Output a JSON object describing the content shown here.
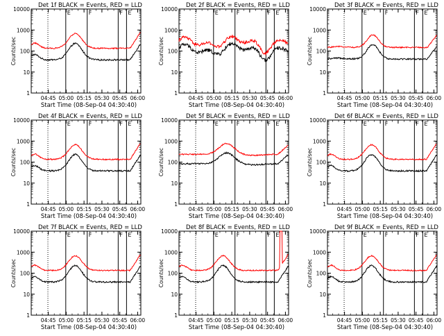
{
  "chart_data": [
    {
      "type": "line",
      "title": "Det 1f BLACK = Events, RED = LLD",
      "xlabel": "Start Time (08-Sep-04 04:30:40)",
      "ylabel": "Counts/sec",
      "yscale": "log",
      "ylim": [
        1,
        10000
      ],
      "yticks": [
        "1",
        "10",
        "100",
        "1000",
        "10000"
      ],
      "xticks": [
        "04:45",
        "05:00",
        "05:15",
        "05:30",
        "05:45",
        "06:00"
      ],
      "xlim_minutes": [
        0,
        92
      ],
      "series": [
        {
          "name": "Events",
          "color": "#000000",
          "profile": "a"
        },
        {
          "name": "LLD",
          "color": "#ff0000",
          "profile": "a"
        }
      ],
      "vlines": [
        {
          "t": 14,
          "style": "dotted"
        },
        {
          "t": 29,
          "style": "solid",
          "label": "E"
        },
        {
          "t": 47,
          "style": "solid",
          "label": "F"
        },
        {
          "t": 73,
          "style": "solid",
          "label": "F"
        },
        {
          "t": 80,
          "style": "solid",
          "label": "E"
        }
      ],
      "grid": false
    },
    {
      "type": "line",
      "title": "Det 2f BLACK = Events, RED = LLD",
      "xlabel": "Start Time (08-Sep-04 04:30:40)",
      "ylabel": "Counts/sec",
      "yscale": "log",
      "ylim": [
        1,
        10000
      ],
      "yticks": [
        "1",
        "10",
        "100",
        "1000",
        "10000"
      ],
      "xticks": [
        "04:45",
        "05:00",
        "05:15",
        "05:30",
        "05:45",
        "06:00"
      ],
      "xlim_minutes": [
        0,
        92
      ],
      "series": [
        {
          "name": "Events",
          "color": "#000000",
          "profile": "b"
        },
        {
          "name": "LLD",
          "color": "#ff0000",
          "profile": "b"
        }
      ],
      "vlines": [
        {
          "t": 14,
          "style": "dotted"
        },
        {
          "t": 29,
          "style": "solid",
          "label": "E"
        },
        {
          "t": 47,
          "style": "solid",
          "label": "F"
        },
        {
          "t": 73,
          "style": "solid",
          "label": "F"
        },
        {
          "t": 80,
          "style": "solid",
          "label": "E"
        }
      ],
      "grid": false
    },
    {
      "type": "line",
      "title": "Det 3f BLACK = Events, RED = LLD",
      "xlabel": "Start Time (08-Sep-04 04:30:40)",
      "ylabel": "Counts/sec",
      "yscale": "log",
      "ylim": [
        1,
        10000
      ],
      "yticks": [
        "1",
        "10",
        "100",
        "1000",
        "10000"
      ],
      "xticks": [
        "04:45",
        "05:00",
        "05:15",
        "05:30",
        "05:45",
        "06:00"
      ],
      "xlim_minutes": [
        0,
        92
      ],
      "series": [
        {
          "name": "Events",
          "color": "#000000",
          "profile": "c"
        },
        {
          "name": "LLD",
          "color": "#ff0000",
          "profile": "c"
        }
      ],
      "vlines": [
        {
          "t": 14,
          "style": "dotted"
        },
        {
          "t": 29,
          "style": "solid",
          "label": "E"
        },
        {
          "t": 47,
          "style": "solid",
          "label": "F"
        },
        {
          "t": 73,
          "style": "solid",
          "label": "F"
        },
        {
          "t": 80,
          "style": "solid",
          "label": "E"
        }
      ],
      "grid": false
    },
    {
      "type": "line",
      "title": "Det 4f BLACK = Events, RED = LLD",
      "xlabel": "Start Time (08-Sep-04 04:30:40)",
      "ylabel": "Counts/sec",
      "yscale": "log",
      "ylim": [
        1,
        10000
      ],
      "yticks": [
        "1",
        "10",
        "100",
        "1000",
        "10000"
      ],
      "xticks": [
        "04:45",
        "05:00",
        "05:15",
        "05:30",
        "05:45",
        "06:00"
      ],
      "xlim_minutes": [
        0,
        92
      ],
      "series": [
        {
          "name": "Events",
          "color": "#000000",
          "profile": "a"
        },
        {
          "name": "LLD",
          "color": "#ff0000",
          "profile": "a"
        }
      ],
      "vlines": [
        {
          "t": 14,
          "style": "dotted"
        },
        {
          "t": 29,
          "style": "solid",
          "label": "E"
        },
        {
          "t": 47,
          "style": "solid",
          "label": "F"
        },
        {
          "t": 73,
          "style": "solid",
          "label": "F"
        },
        {
          "t": 80,
          "style": "solid",
          "label": "E"
        }
      ],
      "grid": false
    },
    {
      "type": "line",
      "title": "Det 5f BLACK = Events, RED = LLD",
      "xlabel": "Start Time (08-Sep-04 04:30:40)",
      "ylabel": "Counts/sec",
      "yscale": "log",
      "ylim": [
        1,
        10000
      ],
      "yticks": [
        "1",
        "10",
        "100",
        "1000",
        "10000"
      ],
      "xticks": [
        "04:45",
        "05:00",
        "05:15",
        "05:30",
        "05:45",
        "06:00"
      ],
      "xlim_minutes": [
        0,
        92
      ],
      "series": [
        {
          "name": "Events",
          "color": "#000000",
          "profile": "d"
        },
        {
          "name": "LLD",
          "color": "#ff0000",
          "profile": "d"
        }
      ],
      "vlines": [
        {
          "t": 14,
          "style": "dotted"
        },
        {
          "t": 29,
          "style": "solid",
          "label": "E"
        },
        {
          "t": 47,
          "style": "solid",
          "label": "F"
        },
        {
          "t": 73,
          "style": "solid",
          "label": "F"
        },
        {
          "t": 80,
          "style": "solid",
          "label": "E"
        }
      ],
      "grid": false
    },
    {
      "type": "line",
      "title": "Det 6f BLACK = Events, RED = LLD",
      "xlabel": "Start Time (08-Sep-04 04:30:40)",
      "ylabel": "Counts/sec",
      "yscale": "log",
      "ylim": [
        1,
        10000
      ],
      "yticks": [
        "1",
        "10",
        "100",
        "1000",
        "10000"
      ],
      "xticks": [
        "04:45",
        "05:00",
        "05:15",
        "05:30",
        "05:45",
        "06:00"
      ],
      "xlim_minutes": [
        0,
        92
      ],
      "series": [
        {
          "name": "Events",
          "color": "#000000",
          "profile": "a"
        },
        {
          "name": "LLD",
          "color": "#ff0000",
          "profile": "a"
        }
      ],
      "vlines": [
        {
          "t": 14,
          "style": "dotted"
        },
        {
          "t": 29,
          "style": "solid",
          "label": "E"
        },
        {
          "t": 47,
          "style": "solid",
          "label": "F"
        },
        {
          "t": 73,
          "style": "solid",
          "label": "F"
        },
        {
          "t": 80,
          "style": "solid",
          "label": "E"
        }
      ],
      "grid": false
    },
    {
      "type": "line",
      "title": "Det 7f BLACK = Events, RED = LLD",
      "xlabel": "Start Time (08-Sep-04 04:30:40)",
      "ylabel": "Counts/sec",
      "yscale": "log",
      "ylim": [
        1,
        10000
      ],
      "yticks": [
        "1",
        "10",
        "100",
        "1000",
        "10000"
      ],
      "xticks": [
        "04:45",
        "05:00",
        "05:15",
        "05:30",
        "05:45",
        "06:00"
      ],
      "xlim_minutes": [
        0,
        92
      ],
      "series": [
        {
          "name": "Events",
          "color": "#000000",
          "profile": "a"
        },
        {
          "name": "LLD",
          "color": "#ff0000",
          "profile": "a"
        }
      ],
      "vlines": [
        {
          "t": 14,
          "style": "dotted"
        },
        {
          "t": 29,
          "style": "solid",
          "label": "E"
        },
        {
          "t": 47,
          "style": "solid",
          "label": "F"
        },
        {
          "t": 73,
          "style": "solid",
          "label": "F"
        },
        {
          "t": 80,
          "style": "solid",
          "label": "E"
        }
      ],
      "grid": false
    },
    {
      "type": "line",
      "title": "Det 8f BLACK = Events, RED = LLD",
      "xlabel": "Start Time (08-Sep-04 04:30:40)",
      "ylabel": "Counts/sec",
      "yscale": "log",
      "ylim": [
        1,
        10000
      ],
      "yticks": [
        "1",
        "10",
        "100",
        "1000",
        "10000"
      ],
      "xticks": [
        "04:45",
        "05:00",
        "05:15",
        "05:30",
        "05:45",
        "06:00"
      ],
      "xlim_minutes": [
        0,
        92
      ],
      "series": [
        {
          "name": "Events",
          "color": "#000000",
          "profile": "e"
        },
        {
          "name": "LLD",
          "color": "#ff0000",
          "profile": "e"
        }
      ],
      "vlines": [
        {
          "t": 14,
          "style": "dotted"
        },
        {
          "t": 29,
          "style": "solid",
          "label": "E"
        },
        {
          "t": 47,
          "style": "solid",
          "label": "F"
        },
        {
          "t": 73,
          "style": "solid",
          "label": "F"
        },
        {
          "t": 80,
          "style": "solid",
          "label": "E"
        }
      ],
      "grid": false
    },
    {
      "type": "line",
      "title": "Det 9f BLACK = Events, RED = LLD",
      "xlabel": "Start Time (08-Sep-04 04:30:40)",
      "ylabel": "Counts/sec",
      "yscale": "log",
      "ylim": [
        1,
        10000
      ],
      "yticks": [
        "1",
        "10",
        "100",
        "1000",
        "10000"
      ],
      "xticks": [
        "04:45",
        "05:00",
        "05:15",
        "05:30",
        "05:45",
        "06:00"
      ],
      "xlim_minutes": [
        0,
        92
      ],
      "series": [
        {
          "name": "Events",
          "color": "#000000",
          "profile": "a"
        },
        {
          "name": "LLD",
          "color": "#ff0000",
          "profile": "a"
        }
      ],
      "vlines": [
        {
          "t": 14,
          "style": "dotted"
        },
        {
          "t": 29,
          "style": "solid",
          "label": "E"
        },
        {
          "t": 47,
          "style": "solid",
          "label": "F"
        },
        {
          "t": 73,
          "style": "solid",
          "label": "F"
        },
        {
          "t": 80,
          "style": "solid",
          "label": "E"
        }
      ],
      "grid": false
    }
  ]
}
